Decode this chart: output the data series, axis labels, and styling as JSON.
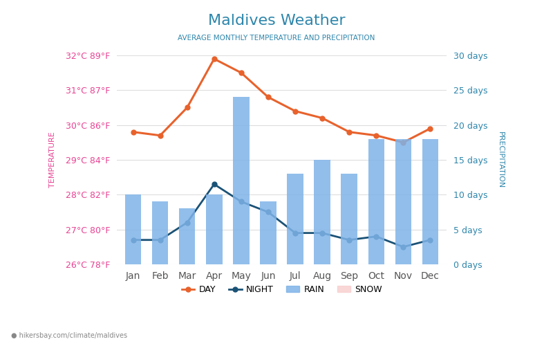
{
  "title": "Maldives Weather",
  "subtitle": "AVERAGE MONTHLY TEMPERATURE AND PRECIPITATION",
  "months": [
    "Jan",
    "Feb",
    "Mar",
    "Apr",
    "May",
    "Jun",
    "Jul",
    "Aug",
    "Sep",
    "Oct",
    "Nov",
    "Dec"
  ],
  "day_temp": [
    29.8,
    29.7,
    30.5,
    31.9,
    31.5,
    30.8,
    30.4,
    30.2,
    29.8,
    29.7,
    29.5,
    29.9
  ],
  "night_temp": [
    26.7,
    26.7,
    27.2,
    28.3,
    27.8,
    27.5,
    26.9,
    26.9,
    26.7,
    26.8,
    26.5,
    26.7
  ],
  "rain_days": [
    10,
    9,
    8,
    10,
    24,
    9,
    13,
    15,
    13,
    18,
    18,
    18
  ],
  "temp_min": 26,
  "temp_max": 32,
  "precip_min": 0,
  "precip_max": 30,
  "day_color": "#e8622c",
  "night_color": "#1a5276",
  "bar_color": "#7fb3e8",
  "background_color": "#ffffff",
  "grid_color": "#dddddd",
  "left_label_color": "#e84393",
  "right_label_color": "#2e86ab",
  "title_color": "#2e86ab",
  "subtitle_color": "#2e86ab",
  "watermark": "hikersbay.com/climate/maldives",
  "temp_ticks": [
    26,
    27,
    28,
    29,
    30,
    31,
    32
  ],
  "temp_tick_labels": [
    "26°C 78°F",
    "27°C 80°F",
    "28°C 82°F",
    "29°C 84°F",
    "30°C 86°F",
    "31°C 87°F",
    "32°C 89°F"
  ],
  "precip_ticks": [
    0,
    5,
    10,
    15,
    20,
    25,
    30
  ],
  "precip_tick_labels": [
    "0 days",
    "5 days",
    "10 days",
    "15 days",
    "20 days",
    "25 days",
    "30 days"
  ],
  "snow_color": "#f9d0d0"
}
